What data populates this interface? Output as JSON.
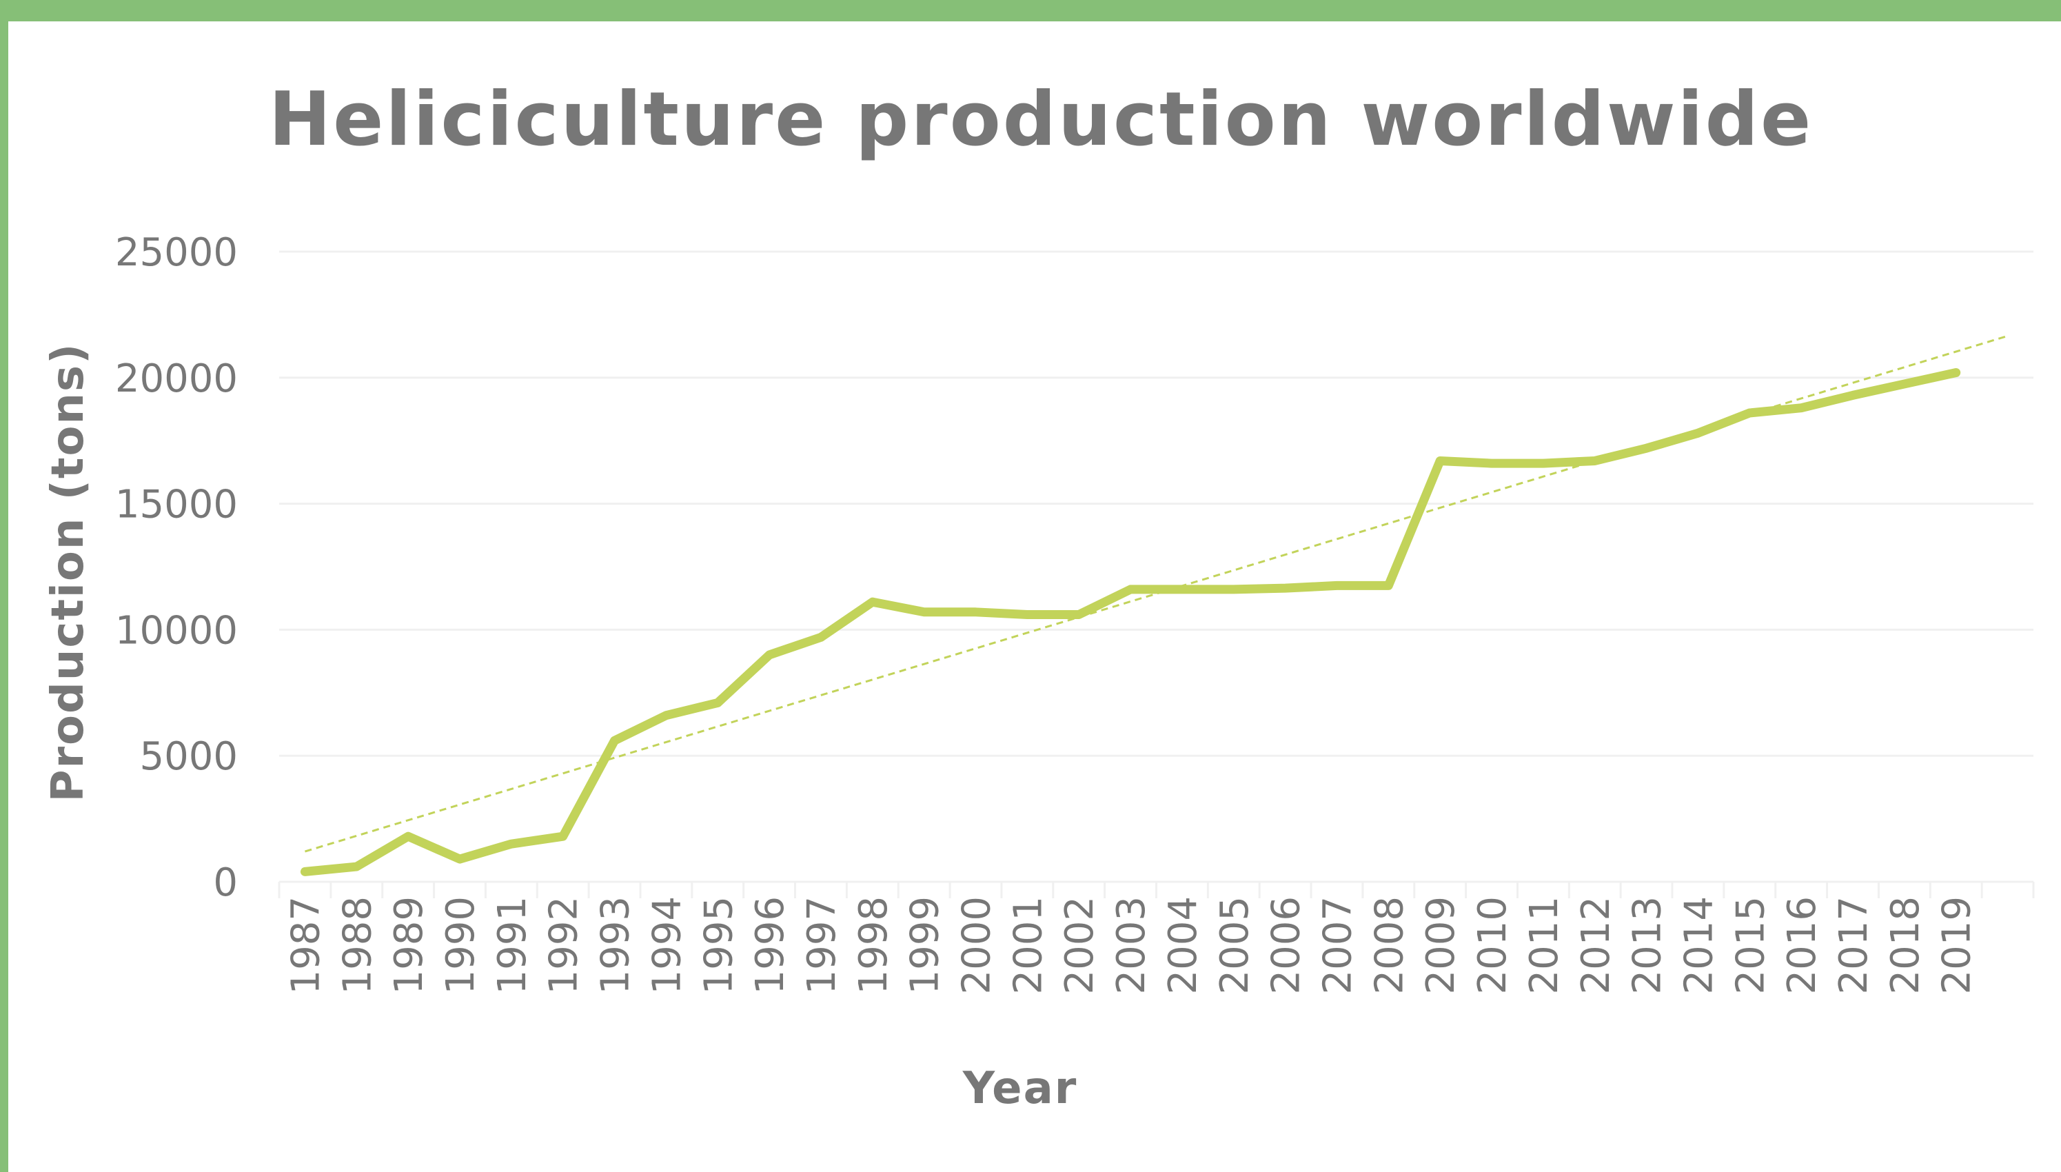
{
  "colors": {
    "border": "#86bf77",
    "series": "#c2d35a",
    "trendline": "#c2d35a",
    "text": "#777777",
    "grid": "#f0f0f0"
  },
  "chart_data": {
    "type": "line",
    "title": "Heliciculture production worldwide",
    "xlabel": "Year",
    "ylabel": "Production (tons)",
    "ylim": [
      0,
      25000
    ],
    "yticks": [
      "0",
      "5000",
      "10000",
      "15000",
      "20000",
      "25000"
    ],
    "grid": true,
    "legend": "none",
    "trendline": "linear",
    "categories": [
      "1987",
      "1988",
      "1989",
      "1990",
      "1991",
      "1992",
      "1993",
      "1994",
      "1995",
      "1996",
      "1997",
      "1998",
      "1999",
      "2000",
      "2001",
      "2002",
      "2003",
      "2004",
      "2005",
      "2006",
      "2007",
      "2008",
      "2009",
      "2010",
      "2011",
      "2012",
      "2013",
      "2014",
      "2015",
      "2016",
      "2017",
      "2018",
      "2019"
    ],
    "series": [
      {
        "values": [
          400,
          600,
          1800,
          900,
          1500,
          1800,
          5600,
          6600,
          7100,
          9000,
          9700,
          11100,
          10700,
          10700,
          10600,
          10600,
          11600,
          11600,
          11600,
          11650,
          11750,
          11750,
          16700,
          16600,
          16600,
          16700,
          17200,
          17800,
          18600,
          18800,
          19300,
          19750,
          20200
        ]
      }
    ]
  }
}
